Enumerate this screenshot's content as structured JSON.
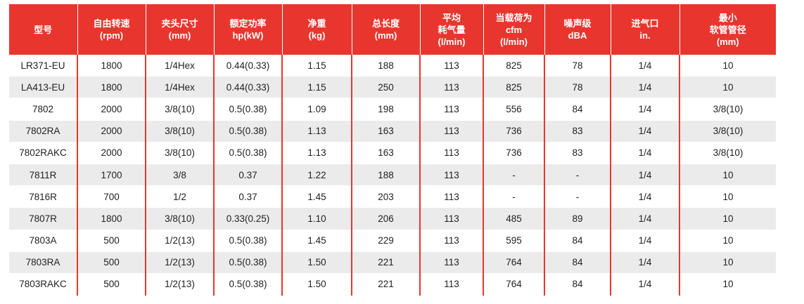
{
  "table": {
    "headers": [
      [
        "型号"
      ],
      [
        "自由转速",
        "(rpm)"
      ],
      [
        "夹头尺寸",
        "(mm)"
      ],
      [
        "额定功率",
        "hp(kW)"
      ],
      [
        "净重",
        "(kg)"
      ],
      [
        "总长度",
        "(mm)"
      ],
      [
        "平均",
        "耗气量",
        "(l/min)"
      ],
      [
        "当载荷为",
        "cfm",
        "(l/min)"
      ],
      [
        "噪声级",
        "dBA"
      ],
      [
        "进气口",
        "in."
      ],
      [
        "最小",
        "软管管径",
        "(mm)"
      ]
    ],
    "rows": [
      [
        "LR371-EU",
        "1800",
        "1/4Hex",
        "0.44(0.33)",
        "1.15",
        "188",
        "113",
        "825",
        "78",
        "1/4",
        "10"
      ],
      [
        "LA413-EU",
        "1800",
        "1/4Hex",
        "0.44(0.33)",
        "1.15",
        "250",
        "113",
        "825",
        "78",
        "1/4",
        "10"
      ],
      [
        "7802",
        "2000",
        "3/8(10)",
        "0.5(0.38)",
        "1.09",
        "198",
        "113",
        "556",
        "84",
        "1/4",
        "3/8(10)"
      ],
      [
        "7802RA",
        "2000",
        "3/8(10)",
        "0.5(0.38)",
        "1.13",
        "163",
        "113",
        "736",
        "83",
        "1/4",
        "3/8(10)"
      ],
      [
        "7802RAKC",
        "2000",
        "3/8(10)",
        "0.5(0.38)",
        "1.13",
        "163",
        "113",
        "736",
        "83",
        "1/4",
        "3/8(10)"
      ],
      [
        "7811R",
        "1700",
        "3/8",
        "0.37",
        "1.22",
        "188",
        "113",
        "-",
        "-",
        "1/4",
        "10"
      ],
      [
        "7816R",
        "700",
        "1/2",
        "0.37",
        "1.45",
        "203",
        "113",
        "-",
        "-",
        "1/4",
        "10"
      ],
      [
        "7807R",
        "1800",
        "3/8(10)",
        "0.33(0.25)",
        "1.10",
        "206",
        "113",
        "485",
        "89",
        "1/4",
        "10"
      ],
      [
        "7803A",
        "500",
        "1/2(13)",
        "0.5(0.38)",
        "1.45",
        "229",
        "113",
        "595",
        "84",
        "1/4",
        "10"
      ],
      [
        "7803RA",
        "500",
        "1/2(13)",
        "0.5(0.38)",
        "1.50",
        "221",
        "113",
        "764",
        "84",
        "1/4",
        "10"
      ],
      [
        "7803RAKC",
        "500",
        "1/2(13)",
        "0.5(0.38)",
        "1.50",
        "221",
        "113",
        "764",
        "84",
        "1/4",
        "10"
      ]
    ]
  },
  "colors": {
    "header_bg": "#e8362f",
    "header_text": "#ffffff",
    "stripe": "#ebebeb",
    "divider": "#e8362f"
  }
}
